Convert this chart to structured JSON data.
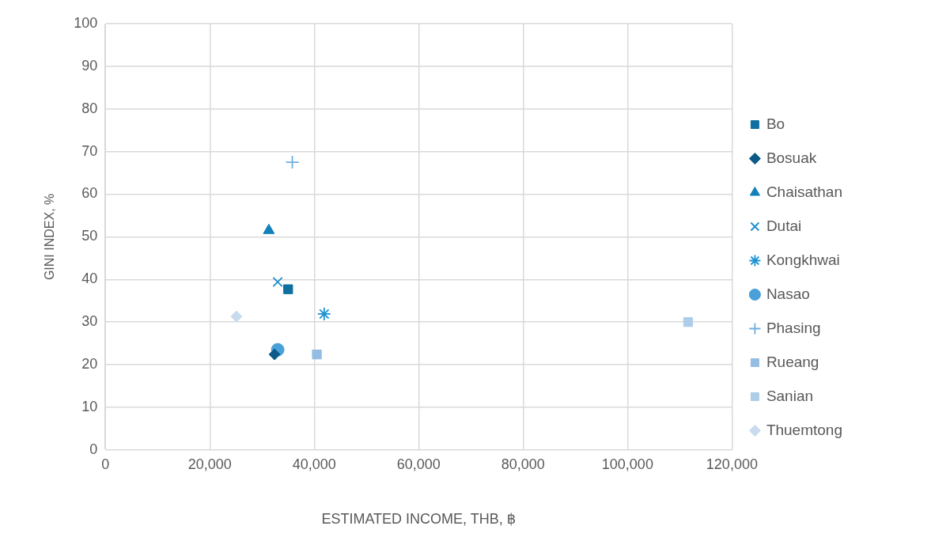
{
  "chart_data": {
    "type": "scatter",
    "xlabel": "ESTIMATED INCOME, THB, ฿",
    "ylabel": "GINI INDEX, %",
    "xlim": [
      0,
      120000
    ],
    "xticks": [
      {
        "value": 0,
        "label": "0"
      },
      {
        "value": 20000,
        "label": "20,000"
      },
      {
        "value": 40000,
        "label": "40,000"
      },
      {
        "value": 60000,
        "label": "60,000"
      },
      {
        "value": 80000,
        "label": "80,000"
      },
      {
        "value": 100000,
        "label": "100,000"
      },
      {
        "value": 120000,
        "label": "120,000"
      }
    ],
    "ylim": [
      0,
      100
    ],
    "yticks": [
      0,
      10,
      20,
      30,
      40,
      50,
      60,
      70,
      80,
      90,
      100
    ],
    "grid": true,
    "legend": "right",
    "series": [
      {
        "name": "Bo",
        "color": "#0e6fa0",
        "marker": "square",
        "x": [
          35000
        ],
        "values": [
          37.7
        ]
      },
      {
        "name": "Bosuak",
        "color": "#0b5a88",
        "marker": "diamond",
        "x": [
          32400
        ],
        "values": [
          22.4
        ]
      },
      {
        "name": "Chaisathan",
        "color": "#1281b8",
        "marker": "triangle",
        "x": [
          31300
        ],
        "values": [
          51.5
        ]
      },
      {
        "name": "Dutai",
        "color": "#1a8dcc",
        "marker": "x",
        "x": [
          33000
        ],
        "values": [
          39.4
        ]
      },
      {
        "name": "Kongkhwai",
        "color": "#1f93d1",
        "x": [
          41900
        ],
        "values": [
          31.9
        ]
      },
      {
        "name": "Nasao",
        "color": "#4aa0d8",
        "marker": "circle",
        "x": [
          33000
        ],
        "values": [
          23.5
        ]
      },
      {
        "name": "Phasing",
        "color": "#6eaee0",
        "marker": "cross",
        "x": [
          35800
        ],
        "values": [
          67.5
        ]
      },
      {
        "name": "Rueang",
        "color": "#94bde3",
        "marker": "square",
        "x": [
          40500
        ],
        "values": [
          22.4
        ]
      },
      {
        "name": "Sanian",
        "color": "#aecde9",
        "marker": "square",
        "x": [
          111600
        ],
        "values": [
          30
        ]
      },
      {
        "name": "Thuemtong",
        "color": "#c9dbef",
        "marker": "diamond",
        "x": [
          25100
        ],
        "values": [
          31.3
        ]
      }
    ]
  }
}
